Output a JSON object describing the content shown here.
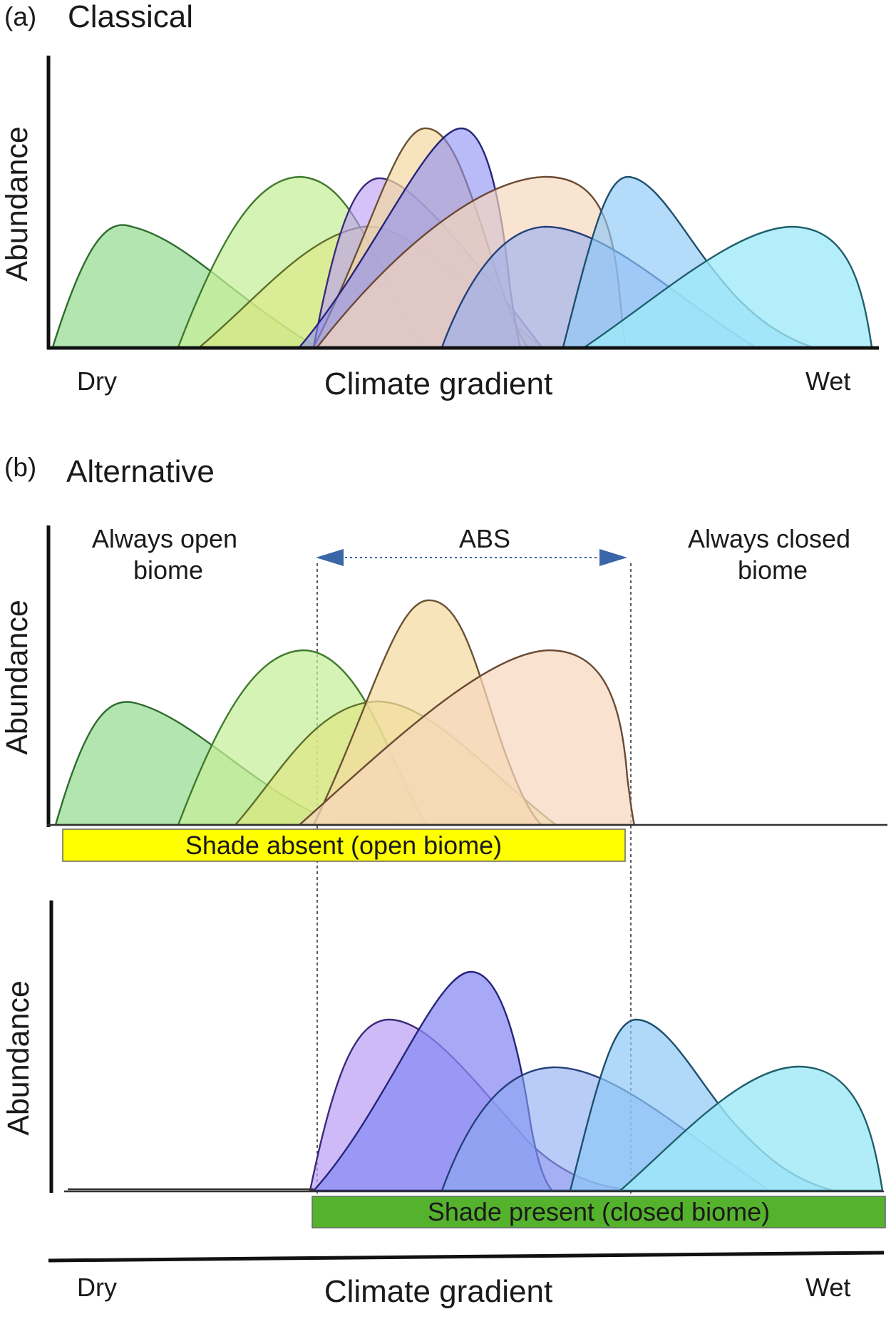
{
  "panel_a": {
    "tag": "(a)",
    "title": "Classical",
    "ylabel": "Abundance",
    "xlabel": "Climate gradient",
    "x_start_label": "Dry",
    "x_end_label": "Wet"
  },
  "panel_b": {
    "tag": "(b)",
    "title": "Alternative",
    "ylabel": "Abundance",
    "xlabel": "Climate gradient",
    "x_start_label": "Dry",
    "x_end_label": "Wet",
    "region_left": [
      "Always open",
      "biome"
    ],
    "region_middle": "ABS",
    "region_right": [
      "Always closed",
      "biome"
    ],
    "open_bar": {
      "label": "Shade absent (open biome)",
      "color": "#ffff00"
    },
    "closed_bar": {
      "label": "Shade present (closed biome)",
      "color": "#55b22d"
    }
  },
  "colors": {
    "green_dark": "#8fd88a",
    "green_light": "#c6ee9a",
    "yellow_green": "#dfe67a",
    "tan": "#f4d9a0",
    "peach": "#f6d7bd",
    "violet": "#b99cf4",
    "blue_violet": "#8a8cf4",
    "mid_blue": "#8aa8f2",
    "sky_blue": "#8ec8f7",
    "cyan": "#9ee9f8",
    "abs_arrow": "#3a66a8"
  }
}
